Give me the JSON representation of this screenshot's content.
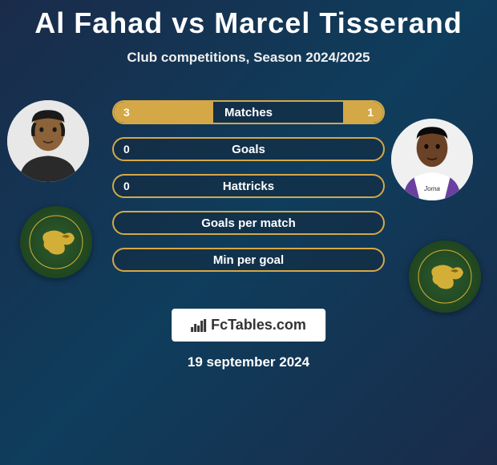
{
  "title": "Al Fahad vs Marcel Tisserand",
  "subtitle": "Club competitions, Season 2024/2025",
  "date": "19 september 2024",
  "fctables_label": "FcTables.com",
  "accent_color": "#d4a847",
  "bg_gradient": [
    "#1a2b4a",
    "#0f3d5c"
  ],
  "stats": [
    {
      "label": "Matches",
      "left_value": "3",
      "right_value": "1",
      "left_fill_pct": 37,
      "right_fill_pct": 15
    },
    {
      "label": "Goals",
      "left_value": "0",
      "right_value": "",
      "left_fill_pct": 0,
      "right_fill_pct": 0
    },
    {
      "label": "Hattricks",
      "left_value": "0",
      "right_value": "",
      "left_fill_pct": 0,
      "right_fill_pct": 0
    },
    {
      "label": "Goals per match",
      "left_value": "",
      "right_value": "",
      "left_fill_pct": 0,
      "right_fill_pct": 0
    },
    {
      "label": "Min per goal",
      "left_value": "",
      "right_value": "",
      "left_fill_pct": 0,
      "right_fill_pct": 0
    }
  ],
  "player_left": {
    "name": "Al Fahad",
    "skin": "#8b6239",
    "hair": "#1a1a1a",
    "shirt": "#2a2a2a"
  },
  "player_right": {
    "name": "Marcel Tisserand",
    "skin": "#6b4226",
    "hair": "#0a0a0a",
    "shirt": "#ffffff",
    "shirt_accent": "#6b3fa0"
  },
  "club_badge": {
    "bg_outer": "#2d5a2d",
    "bg_inner": "#1a3d1a",
    "bird_color": "#d4af37"
  }
}
